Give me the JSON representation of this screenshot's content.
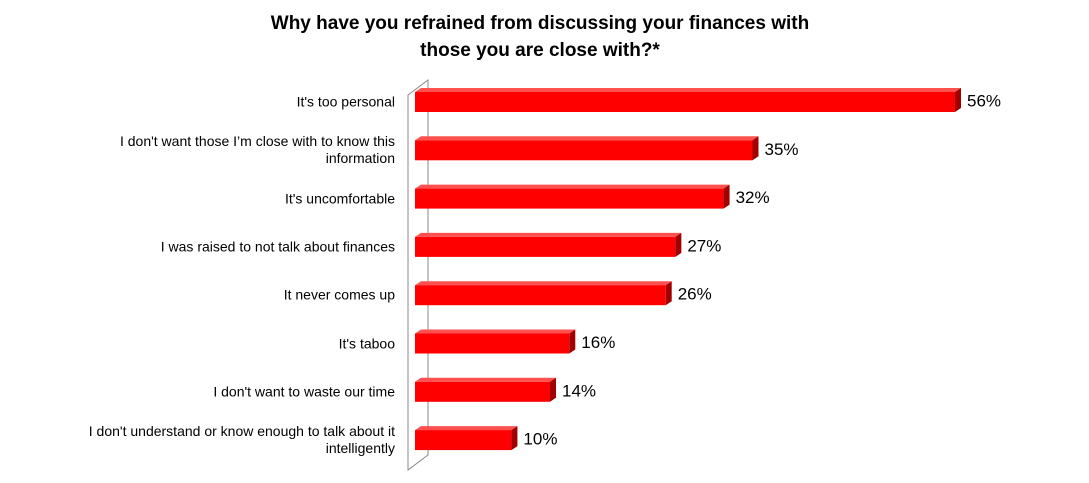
{
  "chart_data": {
    "type": "bar",
    "orientation": "horizontal",
    "title": "Why have you refrained from discussing your finances with those you are close with?*",
    "categories": [
      "It's too personal",
      "I don't want those I’m close with to know this information",
      "It's uncomfortable",
      "I was raised to not talk about finances",
      "It never comes up",
      "It's taboo",
      "I don't want to waste our time",
      "I don't understand or know enough to talk about it intelligently"
    ],
    "values": [
      56,
      35,
      32,
      27,
      26,
      16,
      14,
      10
    ],
    "value_labels": [
      "56%",
      "35%",
      "32%",
      "27%",
      "26%",
      "16%",
      "14%",
      "10%"
    ],
    "color": "#ff0000"
  }
}
